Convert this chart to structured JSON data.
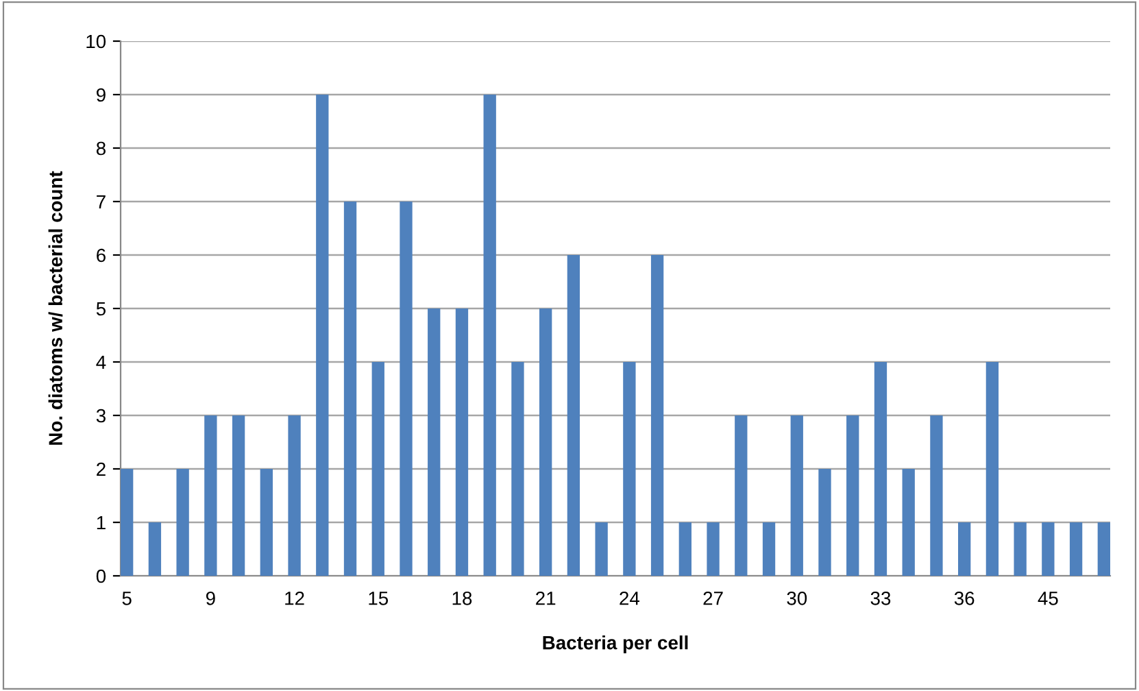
{
  "chart_data": {
    "type": "bar",
    "xlabel": "Bacteria per cell",
    "ylabel": "No. diatoms w/ bacterial count",
    "categories": [
      "5",
      null,
      null,
      "9",
      null,
      null,
      "12",
      null,
      null,
      "15",
      null,
      null,
      "18",
      null,
      null,
      "21",
      null,
      null,
      "24",
      null,
      null,
      "27",
      null,
      null,
      "30",
      null,
      null,
      "33",
      null,
      null,
      "36",
      null,
      null,
      "45",
      null,
      null
    ],
    "values": [
      2,
      1,
      2,
      3,
      3,
      2,
      3,
      9,
      7,
      4,
      7,
      5,
      5,
      9,
      4,
      5,
      6,
      1,
      4,
      6,
      1,
      1,
      3,
      1,
      3,
      2,
      3,
      4,
      2,
      3,
      1,
      4,
      1,
      1,
      1,
      1
    ],
    "color": "#4f81bd",
    "ylim": [
      0,
      10
    ],
    "yticks": [
      0,
      1,
      2,
      3,
      4,
      5,
      6,
      7,
      8,
      9,
      10
    ],
    "grid": "y",
    "legend": false
  }
}
